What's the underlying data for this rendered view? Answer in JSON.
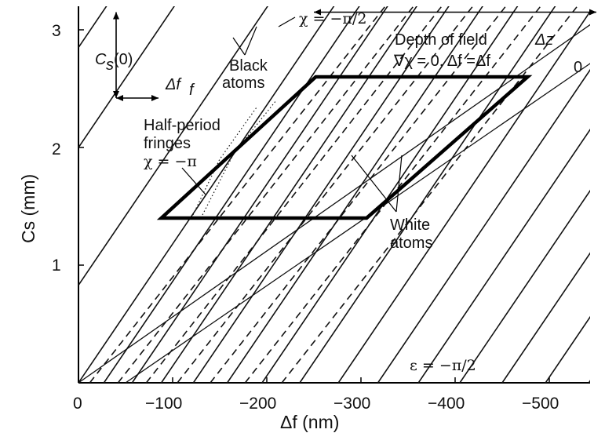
{
  "chart_data": {
    "type": "line",
    "xlabel": "Δf (nm)",
    "ylabel": "Cs (mm)",
    "xlim": [
      0,
      -550
    ],
    "ylim": [
      0,
      3.2
    ],
    "x_ticks": [
      "0",
      "−100",
      "−200",
      "−300",
      "−400",
      "−500"
    ],
    "y_ticks": [
      "1",
      "2",
      "3"
    ],
    "solid_family_x_at_zero": [
      0,
      -27,
      -57,
      -88,
      -122,
      -158,
      -195,
      -235,
      -276,
      -318,
      -361,
      -405,
      -450,
      -496,
      -542
    ],
    "solid_family_slope_mm_per_nm": -0.0118,
    "solid_family_offsets_left": [
      0.83,
      2.0,
      2.85
    ],
    "dashed_family_x_at_zero": [
      -12,
      -42,
      -72,
      -105,
      -140,
      -177,
      -216
    ],
    "dashed_family_slope_mm_per_nm": -0.0102,
    "flat_lines": [
      {
        "from": [
          0,
          0
        ],
        "to": [
          -550,
          3.08
        ]
      },
      {
        "from": [
          -50,
          0
        ],
        "to": [
          -550,
          2.75
        ]
      }
    ],
    "dotted_curves": [
      {
        "points": [
          [
            -120,
            1.4
          ],
          [
            -150,
            1.9
          ],
          [
            -190,
            2.35
          ]
        ]
      },
      {
        "points": [
          [
            -130,
            1.4
          ],
          [
            -165,
            1.95
          ],
          [
            -210,
            2.4
          ]
        ]
      }
    ],
    "region": {
      "name": "Depth of field parallelogram",
      "corners": [
        [
          -88,
          1.4
        ],
        [
          -252,
          2.6
        ],
        [
          -477,
          2.6
        ],
        [
          -306,
          1.4
        ]
      ]
    },
    "arrows": [
      {
        "label": "Cs(0)",
        "from": [
          -40,
          3.15
        ],
        "to": [
          -40,
          2.42
        ]
      },
      {
        "label": "Δff",
        "from": [
          -40,
          2.42
        ],
        "to": [
          -85,
          2.42
        ]
      },
      {
        "label": "Δz",
        "from": [
          -250,
          3.15
        ],
        "to": [
          -550,
          3.15
        ]
      }
    ],
    "annotations": {
      "chi_half": "χ = −π/2",
      "black_atoms": [
        "Black",
        "atoms"
      ],
      "depth_of_field": "Depth of field",
      "delta_z": "Δz",
      "grad_condition": "∇χ = 0, Δf =Δf",
      "grad_sub": "0",
      "cs0": "Cs(0)",
      "cs0_main": "C",
      "cs0_sub": "s",
      "cs0_tail": "(0)",
      "delta_ff_main": "Δf",
      "delta_ff_sub": "f",
      "half_period": [
        "Half-period",
        "fringes"
      ],
      "chi_pi": "χ = −π",
      "white_atoms": [
        "White",
        "atoms"
      ],
      "epsilon": "ε = −π/2"
    }
  }
}
